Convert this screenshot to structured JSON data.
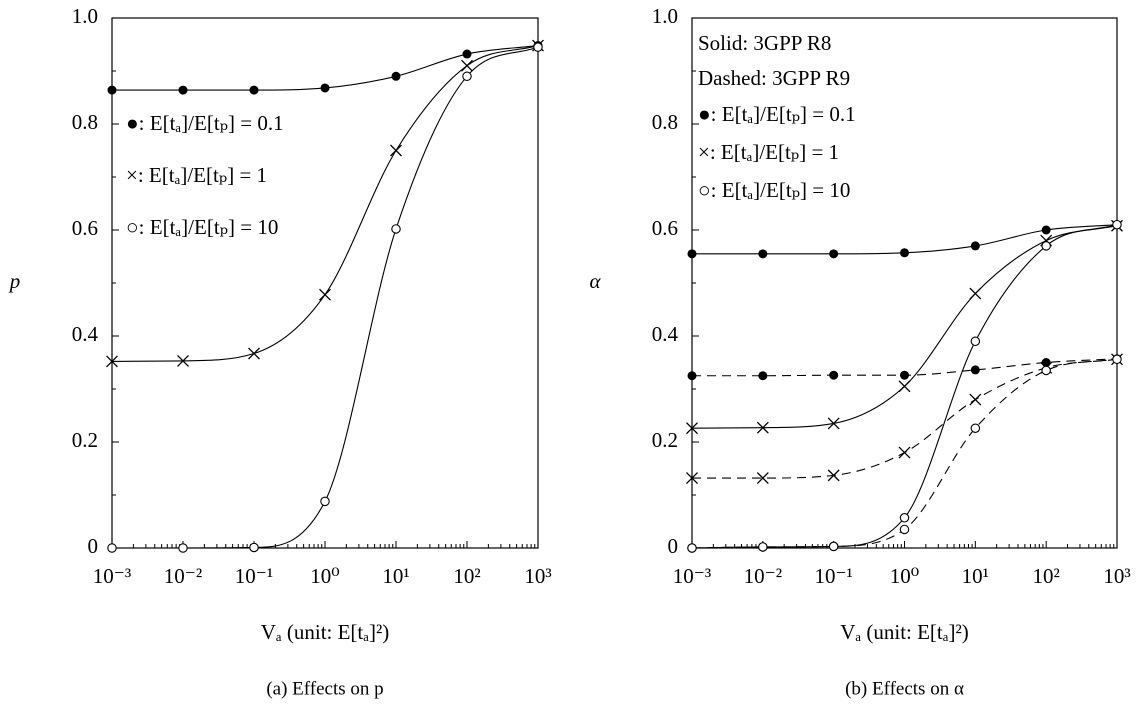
{
  "chart_data": [
    {
      "type": "line",
      "caption": "(a) Effects on p",
      "ylabel": "p",
      "xlabel": "Vₐ (unit: E[tₐ]²)",
      "x": [
        0.001,
        0.01,
        0.1,
        1,
        10,
        100,
        1000
      ],
      "log_x": true,
      "color": "#000000",
      "xlim": [
        0.001,
        1000
      ],
      "xticks": [
        {
          "value": 0.001,
          "label": "10⁻³"
        },
        {
          "value": 0.01,
          "label": "10⁻²"
        },
        {
          "value": 0.1,
          "label": "10⁻¹"
        },
        {
          "value": 1,
          "label": "10⁰"
        },
        {
          "value": 10,
          "label": "10¹"
        },
        {
          "value": 100,
          "label": "10²"
        },
        {
          "value": 1000,
          "label": "10³"
        }
      ],
      "ylim": [
        0,
        1
      ],
      "yticks": [
        0,
        0.2,
        0.4,
        0.6,
        0.8,
        {
          "value": 1,
          "label": "1.0"
        }
      ],
      "series": [
        {
          "name": "●: E[tₐ]/E[tₚ] = 0.1",
          "marker": "dot",
          "dashed": false,
          "values": [
            0.864,
            0.864,
            0.864,
            0.868,
            0.89,
            0.932,
            0.948
          ]
        },
        {
          "name": "×: E[tₐ]/E[tₚ] = 1",
          "marker": "cross",
          "dashed": false,
          "values": [
            0.352,
            0.353,
            0.367,
            0.478,
            0.75,
            0.91,
            0.948
          ]
        },
        {
          "name": "○: E[tₐ]/E[tₚ] = 10",
          "marker": "circle",
          "dashed": false,
          "values": [
            0,
            0,
            0.001,
            0.088,
            0.602,
            0.89,
            0.945
          ]
        }
      ]
    },
    {
      "type": "line",
      "caption": "(b) Effects on α",
      "ylabel": "α",
      "xlabel": "Vₐ (unit: E[tₐ]²)",
      "x": [
        0.001,
        0.01,
        0.1,
        1,
        10,
        100,
        1000
      ],
      "log_x": true,
      "color": "#000000",
      "xlim": [
        0.001,
        1000
      ],
      "xticks": [
        {
          "value": 0.001,
          "label": "10⁻³"
        },
        {
          "value": 0.01,
          "label": "10⁻²"
        },
        {
          "value": 0.1,
          "label": "10⁻¹"
        },
        {
          "value": 1,
          "label": "10⁰"
        },
        {
          "value": 10,
          "label": "10¹"
        },
        {
          "value": 100,
          "label": "10²"
        },
        {
          "value": 1000,
          "label": "10³"
        }
      ],
      "ylim": [
        0,
        1
      ],
      "yticks": [
        0,
        0.2,
        0.4,
        0.6,
        0.8,
        {
          "value": 1,
          "label": "1.0"
        }
      ],
      "annotations": [
        "Solid: 3GPP R8",
        "Dashed: 3GPP R9"
      ],
      "legend": [
        "●: E[tₐ]/E[tₚ] = 0.1",
        "×: E[tₐ]/E[tₚ] = 1",
        "○: E[tₐ]/E[tₚ] = 10"
      ],
      "series": [
        {
          "marker": "dot",
          "dashed": false,
          "values": [
            0.555,
            0.555,
            0.555,
            0.557,
            0.57,
            0.6,
            0.61
          ]
        },
        {
          "marker": "cross",
          "dashed": false,
          "values": [
            0.226,
            0.227,
            0.235,
            0.305,
            0.48,
            0.58,
            0.608
          ]
        },
        {
          "marker": "circle",
          "dashed": false,
          "values": [
            0,
            0.002,
            0.003,
            0.057,
            0.39,
            0.57,
            0.61
          ]
        },
        {
          "marker": "dot",
          "dashed": true,
          "values": [
            0.325,
            0.325,
            0.326,
            0.326,
            0.336,
            0.35,
            0.357
          ]
        },
        {
          "marker": "cross",
          "dashed": true,
          "values": [
            0.132,
            0.132,
            0.137,
            0.18,
            0.28,
            0.34,
            0.356
          ]
        },
        {
          "marker": "circle",
          "dashed": true,
          "values": [
            0,
            0.002,
            0.003,
            0.035,
            0.226,
            0.335,
            0.356
          ]
        }
      ]
    }
  ]
}
